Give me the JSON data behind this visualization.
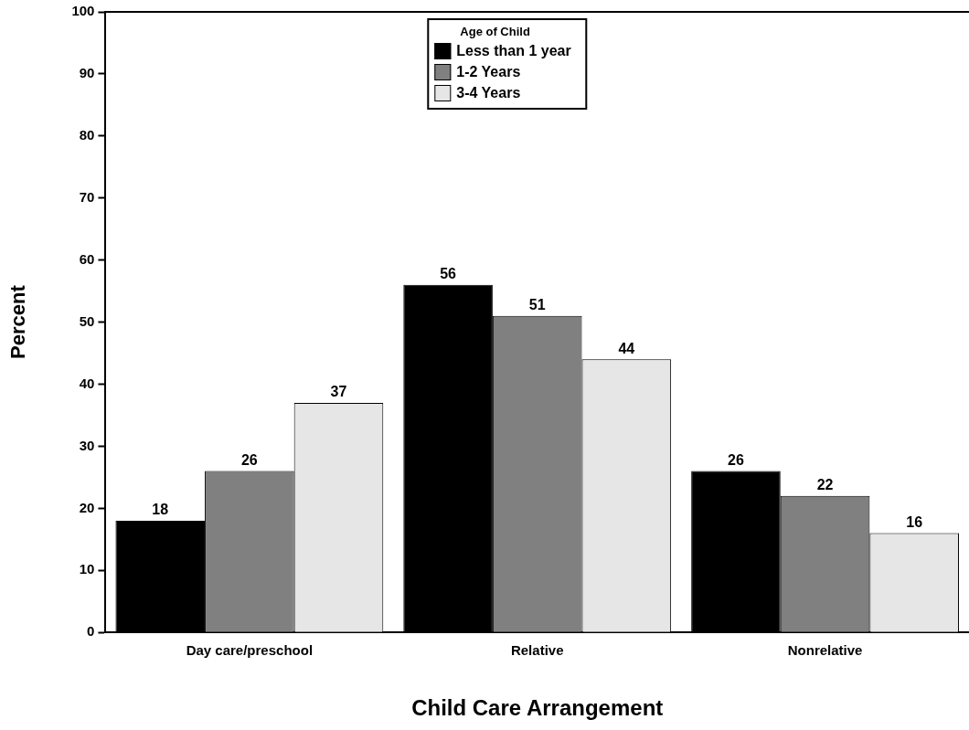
{
  "chart_data": {
    "type": "bar",
    "xlabel": "Child Care Arrangement",
    "ylabel": "Percent",
    "legend_title": "Age of Child",
    "categories": [
      "Day care/preschool",
      "Relative",
      "Nonrelative"
    ],
    "series": [
      {
        "name": "Less than 1 year",
        "color": "#000000",
        "values": [
          18,
          56,
          26
        ]
      },
      {
        "name": "1-2 Years",
        "color": "#808080",
        "values": [
          26,
          51,
          22
        ]
      },
      {
        "name": "3-4 Years",
        "color": "#e6e6e6",
        "values": [
          37,
          44,
          16
        ]
      }
    ],
    "ylim": [
      0,
      100
    ],
    "yticks": [
      0,
      10,
      20,
      30,
      40,
      50,
      60,
      70,
      80,
      90,
      100
    ],
    "grid": false,
    "legend": "top",
    "data_labels": true
  }
}
